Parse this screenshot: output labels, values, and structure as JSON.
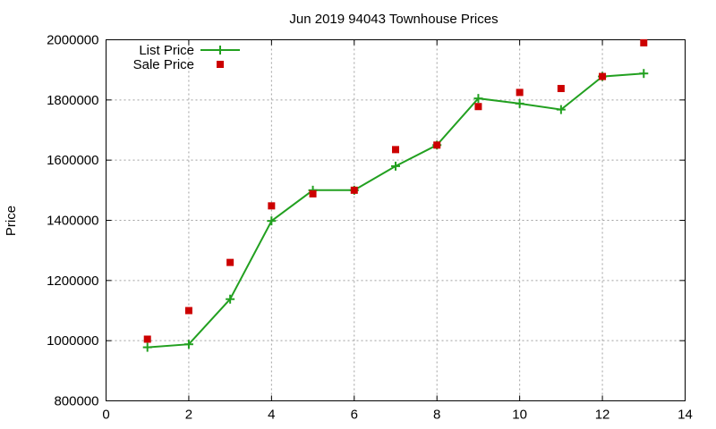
{
  "chart_data": {
    "type": "line",
    "title": "Jun 2019 94043 Townhouse Prices",
    "xlabel": "",
    "ylabel": "Price",
    "xlim": [
      0,
      14
    ],
    "ylim": [
      800000,
      2000000
    ],
    "xticks": [
      "0",
      "2",
      "4",
      "6",
      "8",
      "10",
      "12",
      "14"
    ],
    "yticks": [
      "800000",
      "1000000",
      "1200000",
      "1400000",
      "1600000",
      "1800000",
      "2000000"
    ],
    "grid": true,
    "legend_position": "top-left",
    "series": [
      {
        "name": "List Price",
        "style": "line-with-plus-markers",
        "color": "#22a020",
        "x": [
          1,
          2,
          3,
          4,
          5,
          6,
          7,
          8,
          9,
          10,
          11,
          12,
          13
        ],
        "y": [
          978000,
          988000,
          1138000,
          1398000,
          1500000,
          1500000,
          1580000,
          1650000,
          1805000,
          1788000,
          1768000,
          1878000,
          1888000
        ]
      },
      {
        "name": "Sale Price",
        "style": "square-markers",
        "color": "#cc0000",
        "x": [
          1,
          2,
          3,
          4,
          5,
          6,
          7,
          8,
          9,
          10,
          11,
          12,
          13
        ],
        "y": [
          1005000,
          1100000,
          1260000,
          1448000,
          1488000,
          1500000,
          1635000,
          1650000,
          1778000,
          1825000,
          1838000,
          1878000,
          1990000
        ]
      }
    ]
  }
}
